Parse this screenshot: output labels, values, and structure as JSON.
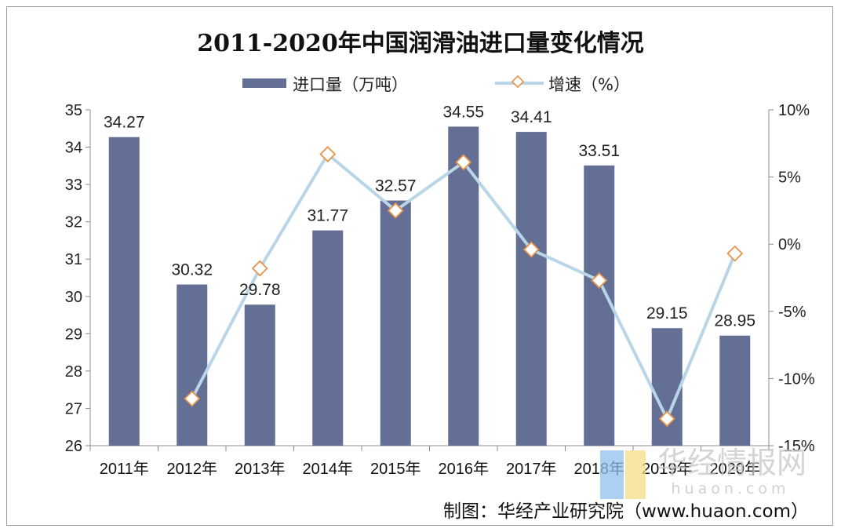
{
  "chart_data": {
    "type": "bar",
    "title": "2011-2020年中国润滑油进口量变化情况",
    "categories": [
      "2011年",
      "2012年",
      "2013年",
      "2014年",
      "2015年",
      "2016年",
      "2017年",
      "2018年",
      "2019年",
      "2020年"
    ],
    "series": [
      {
        "name": "进口量（万吨）",
        "type": "bar",
        "axis": "left",
        "values": [
          34.27,
          30.32,
          29.78,
          31.77,
          32.57,
          34.55,
          34.41,
          33.51,
          29.15,
          28.95
        ],
        "labels": [
          "34.27",
          "30.32",
          "29.78",
          "31.77",
          "32.57",
          "34.55",
          "34.41",
          "33.51",
          "29.15",
          "28.95"
        ]
      },
      {
        "name": "增速（%）",
        "type": "line",
        "axis": "right",
        "values": [
          null,
          -11.5,
          -1.8,
          6.7,
          2.5,
          6.1,
          -0.4,
          -2.7,
          -13.0,
          -0.7
        ]
      }
    ],
    "y_left": {
      "min": 26,
      "max": 35,
      "ticks": [
        "26",
        "27",
        "28",
        "29",
        "30",
        "31",
        "32",
        "33",
        "34",
        "35"
      ]
    },
    "y_right": {
      "min": -15,
      "max": 10,
      "ticks": [
        "-15%",
        "-10%",
        "-5%",
        "0%",
        "5%",
        "10%"
      ]
    },
    "legend_position": "top-center",
    "colors": {
      "bar": "#636f95",
      "line": "#b9d5e8",
      "marker_fill": "#ffffff",
      "marker_stroke": "#e8934a",
      "axis": "#8c8c8c"
    }
  },
  "source": "制图：华经产业研究院（www.huaon.com）",
  "watermark": {
    "name": "华经情报网",
    "domain": "huaon.com"
  }
}
